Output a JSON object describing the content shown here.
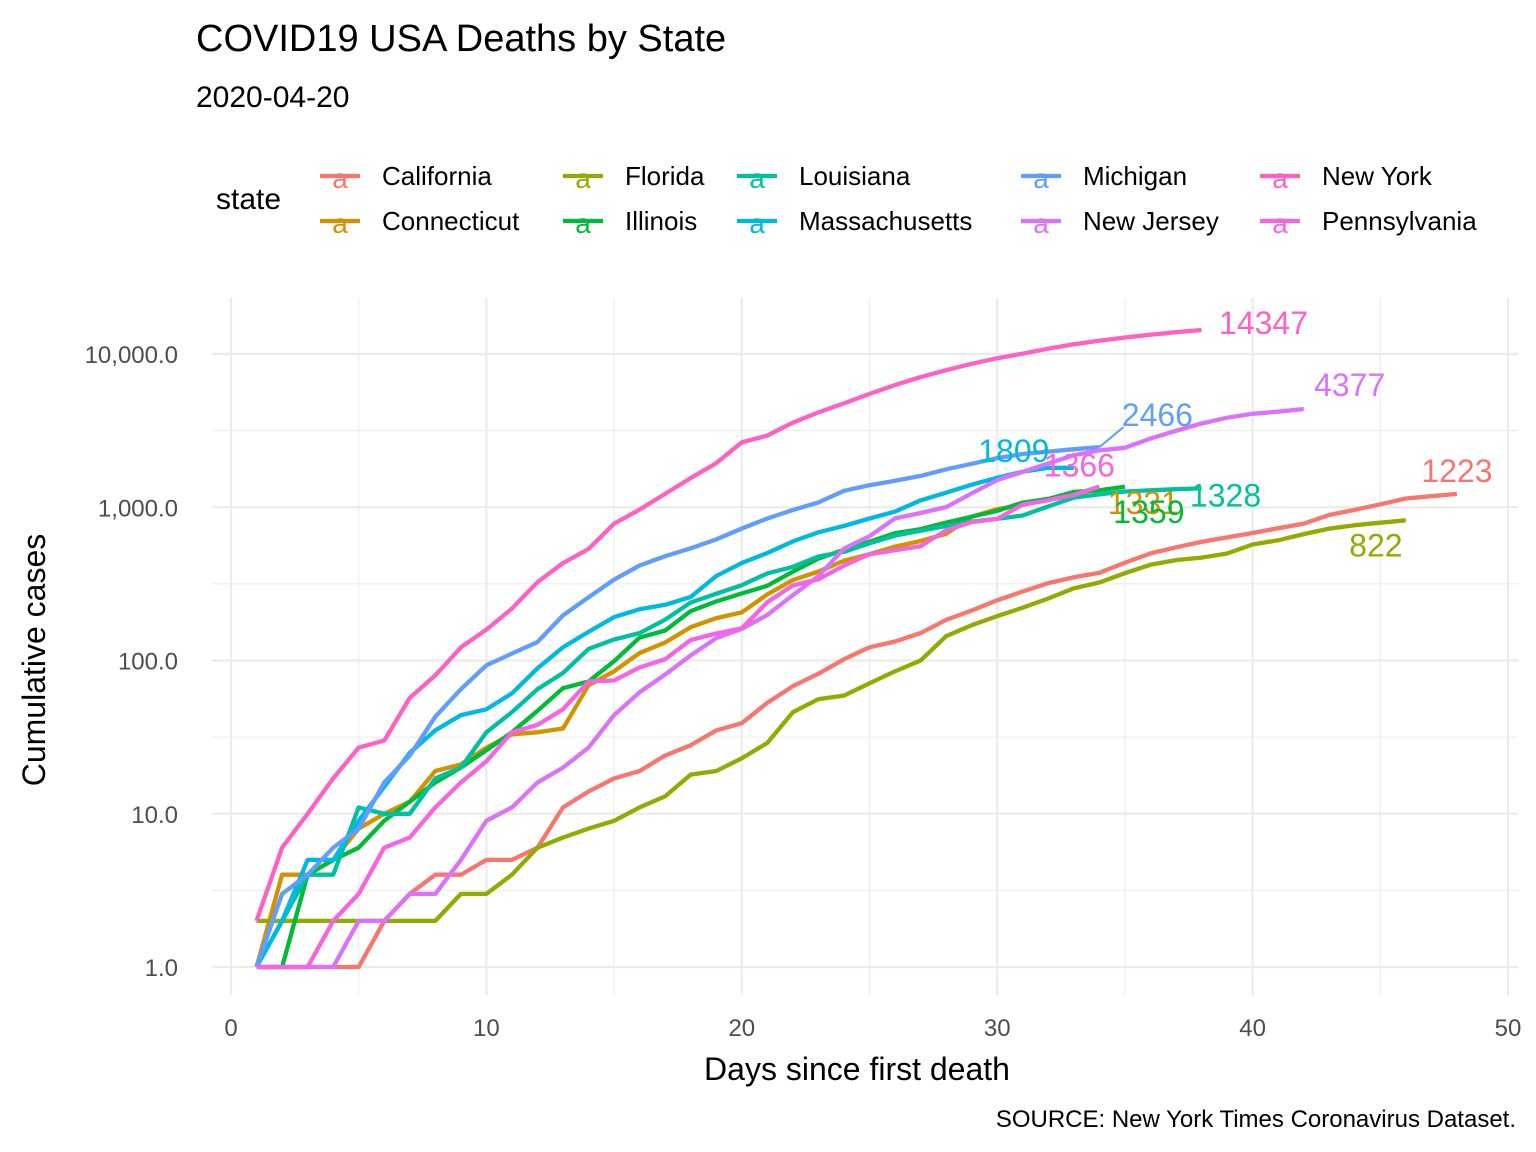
{
  "title": "COVID19 USA Deaths by State",
  "subtitle": "2020-04-20",
  "caption": "SOURCE: New York Times Coronavirus Dataset.",
  "chart_data": {
    "type": "line",
    "title": "COVID19 USA Deaths by State",
    "subtitle": "2020-04-20",
    "xlabel": "Days since first death",
    "ylabel": "Cumulative cases",
    "xlim": [
      0,
      50
    ],
    "ylim": [
      0.7,
      20000
    ],
    "y_scale": "log10",
    "x_ticks": [
      0,
      10,
      20,
      30,
      40,
      50
    ],
    "x_tick_labels": [
      "0",
      "10",
      "20",
      "30",
      "40",
      "50"
    ],
    "y_ticks": [
      1,
      10,
      100,
      1000,
      10000
    ],
    "y_tick_labels": [
      "1.0",
      "10.0",
      "100.0",
      "1,000.0",
      "10,000.0"
    ],
    "grid": true,
    "legend": {
      "title": "state",
      "position": "top"
    },
    "series": [
      {
        "name": "California",
        "color": "#F8766D",
        "end_label": "1223",
        "x": [
          1,
          2,
          3,
          4,
          5,
          6,
          7,
          8,
          9,
          10,
          11,
          12,
          13,
          14,
          15,
          16,
          17,
          18,
          19,
          20,
          21,
          22,
          23,
          24,
          25,
          26,
          27,
          28,
          29,
          30,
          31,
          32,
          33,
          34,
          35,
          36,
          37,
          38,
          39,
          40,
          41,
          42,
          43,
          44,
          45,
          46,
          47,
          48
        ],
        "y": [
          1,
          1,
          1,
          1,
          1,
          2,
          3,
          4,
          4,
          5,
          5,
          6,
          11,
          14,
          17,
          19,
          24,
          28,
          35,
          39,
          53,
          68,
          82,
          102,
          122,
          133,
          151,
          184,
          212,
          247,
          282,
          320,
          349,
          374,
          434,
          500,
          548,
          594,
          636,
          679,
          730,
          782,
          890,
          963,
          1046,
          1140,
          1180,
          1223
        ]
      },
      {
        "name": "Connecticut",
        "color": "#D39200",
        "end_label": "1331",
        "x": [
          1,
          2,
          3,
          4,
          5,
          6,
          7,
          8,
          9,
          10,
          11,
          12,
          13,
          14,
          15,
          16,
          17,
          18,
          19,
          20,
          21,
          22,
          23,
          24,
          25,
          26,
          27,
          28,
          29,
          30,
          31,
          32,
          33,
          34
        ],
        "y": [
          1,
          4,
          4,
          5,
          8,
          10,
          12,
          19,
          21,
          27,
          33,
          34,
          36,
          69,
          85,
          112,
          131,
          165,
          189,
          206,
          270,
          335,
          380,
          448,
          494,
          554,
          602,
          671,
          868,
          971,
          1036,
          1127,
          1200,
          1331
        ]
      },
      {
        "name": "Florida",
        "color": "#93AA00",
        "end_label": "822",
        "x": [
          1,
          2,
          3,
          4,
          5,
          6,
          7,
          8,
          9,
          10,
          11,
          12,
          13,
          14,
          15,
          16,
          17,
          18,
          19,
          20,
          21,
          22,
          23,
          24,
          25,
          26,
          27,
          28,
          29,
          30,
          31,
          32,
          33,
          34,
          35,
          36,
          37,
          38,
          39,
          40,
          41,
          42,
          43,
          44,
          45,
          46
        ],
        "y": [
          2,
          2,
          2,
          2,
          2,
          2,
          2,
          2,
          3,
          3,
          4,
          6,
          7,
          8,
          9,
          11,
          13,
          18,
          19,
          23,
          29,
          46,
          56,
          59,
          71,
          85,
          100,
          144,
          170,
          195,
          221,
          254,
          296,
          323,
          371,
          421,
          452,
          469,
          499,
          571,
          609,
          668,
          726,
          764,
          793,
          822
        ]
      },
      {
        "name": "Illinois",
        "color": "#00BA38",
        "end_label": "1359",
        "x": [
          1,
          2,
          3,
          4,
          5,
          6,
          7,
          8,
          9,
          10,
          11,
          12,
          13,
          14,
          15,
          16,
          17,
          18,
          19,
          20,
          21,
          22,
          23,
          24,
          25,
          26,
          27,
          28,
          29,
          30,
          31,
          32,
          33,
          34,
          35
        ],
        "y": [
          1,
          1,
          4,
          5,
          6,
          9,
          12,
          16,
          20,
          26,
          34,
          47,
          66,
          73,
          99,
          141,
          157,
          210,
          243,
          274,
          307,
          380,
          462,
          528,
          596,
          677,
          720,
          794,
          868,
          948,
          1072,
          1134,
          1259,
          1290,
          1359
        ]
      },
      {
        "name": "Louisiana",
        "color": "#00C19F",
        "end_label": "1328",
        "x": [
          1,
          2,
          3,
          4,
          5,
          6,
          7,
          8,
          9,
          10,
          11,
          12,
          13,
          14,
          15,
          16,
          17,
          18,
          19,
          20,
          21,
          22,
          23,
          24,
          25,
          26,
          27,
          28,
          29,
          30,
          31,
          32,
          33,
          34,
          35,
          36,
          37,
          38
        ],
        "y": [
          1,
          2,
          4,
          4,
          11,
          10,
          10,
          17,
          20,
          34,
          46,
          65,
          83,
          119,
          137,
          151,
          185,
          239,
          273,
          310,
          370,
          409,
          477,
          512,
          582,
          652,
          702,
          755,
          806,
          840,
          884,
          1013,
          1156,
          1213,
          1267,
          1290,
          1311,
          1328
        ]
      },
      {
        "name": "Massachusetts",
        "color": "#00B9E3",
        "end_label": "1809",
        "x": [
          1,
          2,
          3,
          4,
          5,
          6,
          7,
          8,
          9,
          10,
          11,
          12,
          13,
          14,
          15,
          16,
          17,
          18,
          19,
          20,
          21,
          22,
          23,
          24,
          25,
          26,
          27,
          28,
          29,
          30,
          31,
          32,
          33
        ],
        "y": [
          1,
          2,
          5,
          5,
          9,
          15,
          25,
          35,
          44,
          48,
          61,
          89,
          122,
          154,
          192,
          216,
          231,
          260,
          356,
          433,
          503,
          599,
          686,
          756,
          844,
          937,
          1108,
          1245,
          1404,
          1560,
          1706,
          1809,
          1809
        ]
      },
      {
        "name": "Michigan",
        "color": "#619CFF",
        "end_label": "2466",
        "x": [
          1,
          2,
          3,
          4,
          5,
          6,
          7,
          8,
          9,
          10,
          11,
          12,
          13,
          14,
          15,
          16,
          17,
          18,
          19,
          20,
          21,
          22,
          23,
          24,
          25,
          26,
          27,
          28,
          29,
          30,
          31,
          32,
          33,
          34
        ],
        "y": [
          1,
          3,
          4,
          6,
          8,
          16,
          24,
          43,
          65,
          93,
          111,
          132,
          197,
          259,
          337,
          417,
          479,
          540,
          617,
          727,
          845,
          959,
          1076,
          1281,
          1392,
          1487,
          1602,
          1768,
          1921,
          2093,
          2227,
          2308,
          2391,
          2466
        ]
      },
      {
        "name": "New Jersey",
        "color": "#DB72FB",
        "end_label": "4377",
        "x": [
          1,
          2,
          3,
          4,
          5,
          6,
          7,
          8,
          9,
          10,
          11,
          12,
          13,
          14,
          15,
          16,
          17,
          18,
          19,
          20,
          21,
          22,
          23,
          24,
          25,
          26,
          27,
          28,
          29,
          30,
          31,
          32,
          33,
          34,
          35,
          36,
          37,
          38,
          39,
          40,
          41,
          42
        ],
        "y": [
          1,
          1,
          1,
          1,
          2,
          2,
          3,
          3,
          5,
          9,
          11,
          16,
          20,
          27,
          44,
          62,
          81,
          108,
          140,
          161,
          198,
          267,
          355,
          537,
          646,
          846,
          917,
          1003,
          1232,
          1504,
          1700,
          1932,
          2183,
          2350,
          2443,
          2805,
          3156,
          3518,
          3840,
          4070,
          4202,
          4377
        ]
      },
      {
        "name": "New York",
        "color": "#FF61C3",
        "end_label": "14347",
        "x": [
          1,
          2,
          3,
          4,
          5,
          6,
          7,
          8,
          9,
          10,
          11,
          12,
          13,
          14,
          15,
          16,
          17,
          18,
          19,
          20,
          21,
          22,
          23,
          24,
          25,
          26,
          27,
          28,
          29,
          30,
          31,
          32,
          33,
          34,
          35,
          36,
          37,
          38
        ],
        "y": [
          2,
          6,
          10,
          17,
          27,
          30,
          57,
          80,
          122,
          159,
          218,
          325,
          432,
          535,
          782,
          965,
          1224,
          1550,
          1941,
          2653,
          2935,
          3565,
          4159,
          4758,
          5489,
          6268,
          7067,
          7844,
          8627,
          9385,
          10056,
          10834,
          11586,
          12192,
          12822,
          13362,
          13869,
          14347
        ]
      },
      {
        "name": "Pennsylvania",
        "color": "#F564E3",
        "end_label": "1366",
        "x": [
          1,
          2,
          3,
          4,
          5,
          6,
          7,
          8,
          9,
          10,
          11,
          12,
          13,
          14,
          15,
          16,
          17,
          18,
          19,
          20,
          21,
          22,
          23,
          24,
          25,
          26,
          27,
          28,
          29,
          30,
          31,
          32,
          33,
          34
        ],
        "y": [
          1,
          1,
          1,
          2,
          3,
          6,
          7,
          11,
          16,
          22,
          34,
          38,
          48,
          73,
          74,
          90,
          102,
          136,
          150,
          162,
          240,
          309,
          338,
          416,
          494,
          524,
          557,
          707,
          800,
          840,
          1042,
          1112,
          1204,
          1366
        ]
      }
    ]
  }
}
